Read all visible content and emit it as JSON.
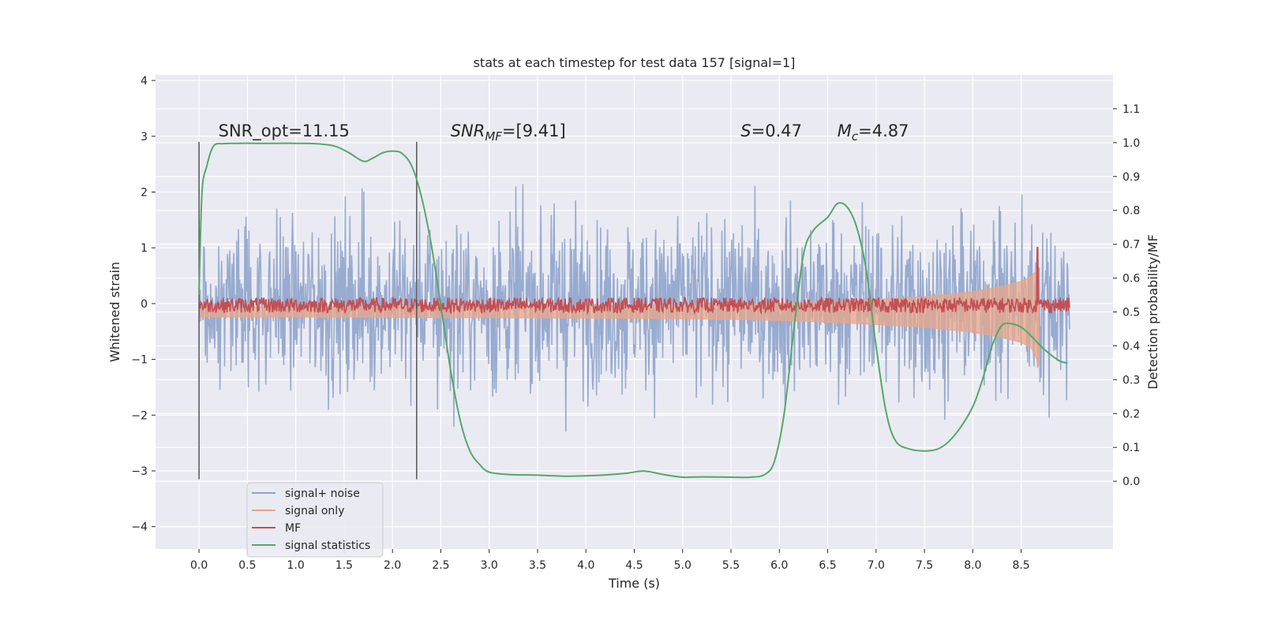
{
  "chart_data": {
    "type": "line",
    "title": "stats at each timestep for test data 157 [signal=1]",
    "xlabel": "Time (s)",
    "ylabel": "Whitened strain",
    "y2label": "Detection probability/MF",
    "xlim": [
      -0.45,
      9.45
    ],
    "ylim": [
      -4.4,
      4.1
    ],
    "y2lim": [
      -0.2,
      1.2
    ],
    "x_ticks": [
      0.0,
      0.5,
      1.0,
      1.5,
      2.0,
      2.5,
      3.0,
      3.5,
      4.0,
      4.5,
      5.0,
      5.5,
      6.0,
      6.5,
      7.0,
      7.5,
      8.0,
      8.5
    ],
    "x_tick_labels": [
      "0.0",
      "0.5",
      "1.0",
      "1.5",
      "2.0",
      "2.5",
      "3.0",
      "3.5",
      "4.0",
      "4.5",
      "5.0",
      "5.5",
      "6.0",
      "6.5",
      "7.0",
      "7.5",
      "8.0",
      "8.5"
    ],
    "y_ticks": [
      4,
      3,
      2,
      1,
      0,
      -1,
      -2,
      -3,
      -4
    ],
    "y_tick_labels": [
      "4",
      "3",
      "2",
      "1",
      "0",
      "−1",
      "−2",
      "−3",
      "−4"
    ],
    "y2_ticks": [
      1.1,
      1.0,
      0.9,
      0.8,
      0.7,
      0.6,
      0.5,
      0.4,
      0.3,
      0.2,
      0.1,
      0.0
    ],
    "y2_tick_labels": [
      "1.1",
      "1.0",
      "0.9",
      "0.8",
      "0.7",
      "0.6",
      "0.5",
      "0.4",
      "0.3",
      "0.2",
      "0.1",
      "0.0"
    ],
    "grid": true,
    "legend_placement": "lower-left",
    "legend": [
      {
        "label": "signal+ noise",
        "color": "#8fa4cc"
      },
      {
        "label": "signal only",
        "color": "#e8a78a"
      },
      {
        "label": "MF",
        "color": "#c44e52"
      },
      {
        "label": "signal statistics",
        "color": "#55a868"
      }
    ],
    "annotations": [
      {
        "prefix": "SNR_opt",
        "sub": "",
        "value": "=11.15",
        "italic": false,
        "x": 0.2,
        "y": 3.0
      },
      {
        "prefix": "SNR",
        "sub": "MF",
        "value": "=[9.41]",
        "italic": true,
        "x": 2.6,
        "y": 3.0
      },
      {
        "prefix": "S",
        "sub": "",
        "value": "=0.47",
        "italic": true,
        "x": 5.6,
        "y": 3.0
      },
      {
        "prefix": "M",
        "sub": "c",
        "value": "=4.87",
        "italic": true,
        "x": 6.6,
        "y": 3.0
      }
    ],
    "vertical_lines": [
      0.0,
      2.25
    ],
    "vertical_line_range": [
      -3.15,
      2.9
    ],
    "series": [
      {
        "name": "signal+ noise",
        "axis": "left",
        "x_range": [
          0.0,
          9.0
        ],
        "amplitude_envelope": {
          "typical": 1.9,
          "peak": 3.7,
          "min_peak": -4.0
        }
      },
      {
        "name": "signal only",
        "axis": "right",
        "x": [
          0.0,
          1.0,
          2.0,
          3.0,
          4.0,
          5.0,
          5.5,
          6.0,
          6.5,
          7.0,
          7.5,
          8.0,
          8.3,
          8.5,
          8.6,
          8.65,
          8.68
        ],
        "upper": [
          0.515,
          0.515,
          0.516,
          0.517,
          0.518,
          0.52,
          0.522,
          0.525,
          0.53,
          0.537,
          0.545,
          0.56,
          0.575,
          0.59,
          0.605,
          0.62,
          0.63
        ],
        "lower": [
          0.485,
          0.485,
          0.484,
          0.483,
          0.482,
          0.48,
          0.478,
          0.475,
          0.47,
          0.463,
          0.455,
          0.44,
          0.425,
          0.41,
          0.395,
          0.37,
          0.34
        ]
      },
      {
        "name": "MF",
        "axis": "right",
        "x_range": [
          0.0,
          9.0
        ],
        "baseline": 0.52,
        "spike": {
          "x": 8.67,
          "y": 0.69
        }
      },
      {
        "name": "signal statistics",
        "axis": "right",
        "x": [
          0.0,
          0.03,
          0.08,
          0.15,
          0.25,
          0.4,
          0.6,
          0.8,
          1.0,
          1.2,
          1.4,
          1.55,
          1.7,
          1.8,
          1.9,
          2.0,
          2.1,
          2.2,
          2.3,
          2.4,
          2.5,
          2.6,
          2.7,
          2.8,
          2.9,
          3.0,
          3.2,
          3.5,
          3.8,
          4.1,
          4.4,
          4.6,
          4.8,
          5.0,
          5.2,
          5.5,
          5.7,
          5.85,
          5.95,
          6.05,
          6.15,
          6.25,
          6.35,
          6.5,
          6.6,
          6.7,
          6.8,
          6.9,
          7.0,
          7.1,
          7.2,
          7.35,
          7.55,
          7.7,
          7.85,
          8.0,
          8.1,
          8.2,
          8.3,
          8.4,
          8.5,
          8.6,
          8.7,
          8.8,
          8.9,
          8.98
        ],
        "y": [
          0.55,
          0.85,
          0.93,
          0.99,
          0.997,
          0.998,
          0.998,
          0.998,
          0.998,
          0.997,
          0.99,
          0.97,
          0.945,
          0.955,
          0.97,
          0.975,
          0.968,
          0.93,
          0.84,
          0.7,
          0.52,
          0.33,
          0.18,
          0.09,
          0.05,
          0.027,
          0.02,
          0.018,
          0.015,
          0.017,
          0.023,
          0.03,
          0.02,
          0.012,
          0.013,
          0.012,
          0.012,
          0.02,
          0.06,
          0.2,
          0.45,
          0.67,
          0.74,
          0.78,
          0.82,
          0.81,
          0.75,
          0.62,
          0.4,
          0.21,
          0.12,
          0.095,
          0.09,
          0.105,
          0.15,
          0.22,
          0.3,
          0.4,
          0.46,
          0.465,
          0.455,
          0.43,
          0.4,
          0.375,
          0.355,
          0.349
        ]
      }
    ],
    "colors": {
      "plot_background": "#eaeaf2",
      "grid": "#ffffff",
      "signal_noise": "#8fa4cc",
      "signal_only": "#e8a78a",
      "mf": "#c44e52",
      "statistics": "#55a868",
      "vline": "#555555"
    }
  }
}
